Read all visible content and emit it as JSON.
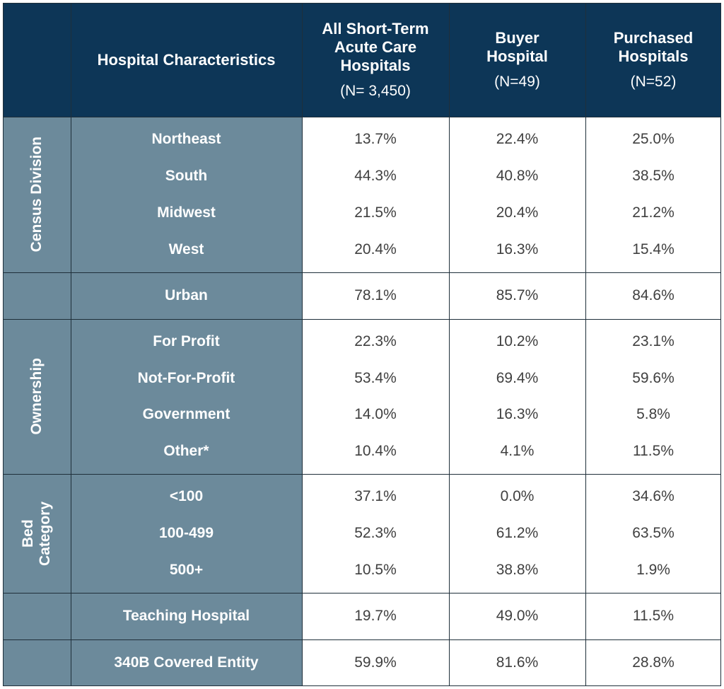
{
  "header": {
    "characteristics": "Hospital Characteristics",
    "columns": [
      {
        "title": "All Short-Term Acute Care Hospitals",
        "n": "(N= 3,450)"
      },
      {
        "title": "Buyer Hospital",
        "n": "(N=49)"
      },
      {
        "title": "Purchased Hospitals",
        "n": "(N=52)"
      }
    ]
  },
  "groups": {
    "census": "Census Division",
    "ownership": "Ownership",
    "bed": "Bed Category"
  },
  "rows": {
    "census": [
      {
        "label": "Northeast",
        "values": [
          "13.7%",
          "22.4%",
          "25.0%"
        ]
      },
      {
        "label": "South",
        "values": [
          "44.3%",
          "40.8%",
          "38.5%"
        ]
      },
      {
        "label": "Midwest",
        "values": [
          "21.5%",
          "20.4%",
          "21.2%"
        ]
      },
      {
        "label": "West",
        "values": [
          "20.4%",
          "16.3%",
          "15.4%"
        ]
      }
    ],
    "urban": [
      {
        "label": "Urban",
        "values": [
          "78.1%",
          "85.7%",
          "84.6%"
        ]
      }
    ],
    "ownership": [
      {
        "label": "For Profit",
        "values": [
          "22.3%",
          "10.2%",
          "23.1%"
        ]
      },
      {
        "label": "Not-For-Profit",
        "values": [
          "53.4%",
          "69.4%",
          "59.6%"
        ]
      },
      {
        "label": "Government",
        "values": [
          "14.0%",
          "16.3%",
          "5.8%"
        ]
      },
      {
        "label": "Other*",
        "values": [
          "10.4%",
          "4.1%",
          "11.5%"
        ]
      }
    ],
    "bed": [
      {
        "label": "<100",
        "values": [
          "37.1%",
          "0.0%",
          "34.6%"
        ]
      },
      {
        "label": "100-499",
        "values": [
          "52.3%",
          "61.2%",
          "63.5%"
        ]
      },
      {
        "label": "500+",
        "values": [
          "10.5%",
          "38.8%",
          "1.9%"
        ]
      }
    ],
    "teaching": [
      {
        "label": "Teaching Hospital",
        "values": [
          "19.7%",
          "49.0%",
          "11.5%"
        ]
      }
    ],
    "covered": [
      {
        "label": "340B Covered Entity",
        "values": [
          "59.9%",
          "81.6%",
          "28.8%"
        ]
      }
    ]
  }
}
